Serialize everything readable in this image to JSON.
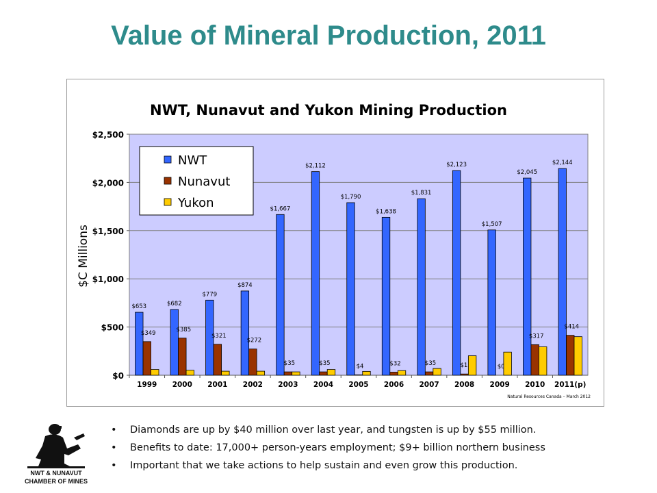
{
  "slide": {
    "title": "Value of Mineral Production, 2011",
    "bullets": [
      "Diamonds are up by $40 million over last year, and tungsten is up by $55 million.",
      "Benefits to date: 17,000+ person-years employment; $9+ billion northern business",
      "Important that we take actions to help sustain and even grow this production."
    ],
    "bullet_glyph": "•",
    "logo": {
      "line1": "NWT & NUNAVUT",
      "line2": "CHAMBER OF MINES"
    }
  },
  "chart_data": {
    "type": "bar",
    "title": "NWT, Nunavut and Yukon Mining Production",
    "ylabel": "$C Millions",
    "xlabel": "",
    "source": "Natural Resources Canada – March 2012",
    "categories": [
      "1999",
      "2000",
      "2001",
      "2002",
      "2003",
      "2004",
      "2005",
      "2006",
      "2007",
      "2008",
      "2009",
      "2010",
      "2011(p)"
    ],
    "ylim": [
      0,
      2500
    ],
    "yticks": [
      0,
      500,
      1000,
      1500,
      2000,
      2500
    ],
    "ytick_labels": [
      "$0",
      "$500",
      "$1,000",
      "$1,500",
      "$2,000",
      "$2,500"
    ],
    "grid": true,
    "legend_position": "top-left",
    "plot_background": "#ccccff",
    "series": [
      {
        "name": "NWT",
        "color": "#3366ff",
        "values": [
          653,
          682,
          779,
          874,
          1667,
          2112,
          1790,
          1638,
          1831,
          2123,
          1507,
          2045,
          2144
        ],
        "labels": [
          "$653",
          "$682",
          "$779",
          "$874",
          "$1,667",
          "$2,112",
          "$1,790",
          "$1,638",
          "$1,831",
          "$2,123",
          "$1,507",
          "$2,045",
          "$2,144"
        ]
      },
      {
        "name": "Nunavut",
        "color": "#993300",
        "values": [
          349,
          385,
          321,
          272,
          35,
          35,
          4,
          32,
          35,
          13,
          0,
          317,
          414
        ],
        "labels": [
          "$349",
          "$385",
          "$321",
          "$272",
          "$35",
          "$35",
          "$4",
          "$32",
          "$35",
          "$13",
          "$0",
          "$317",
          "$414"
        ]
      },
      {
        "name": "Yukon",
        "color": "#ffcc00",
        "values": [
          60,
          52,
          42,
          42,
          35,
          60,
          40,
          48,
          70,
          202,
          240,
          295,
          400
        ],
        "labels": []
      }
    ]
  }
}
